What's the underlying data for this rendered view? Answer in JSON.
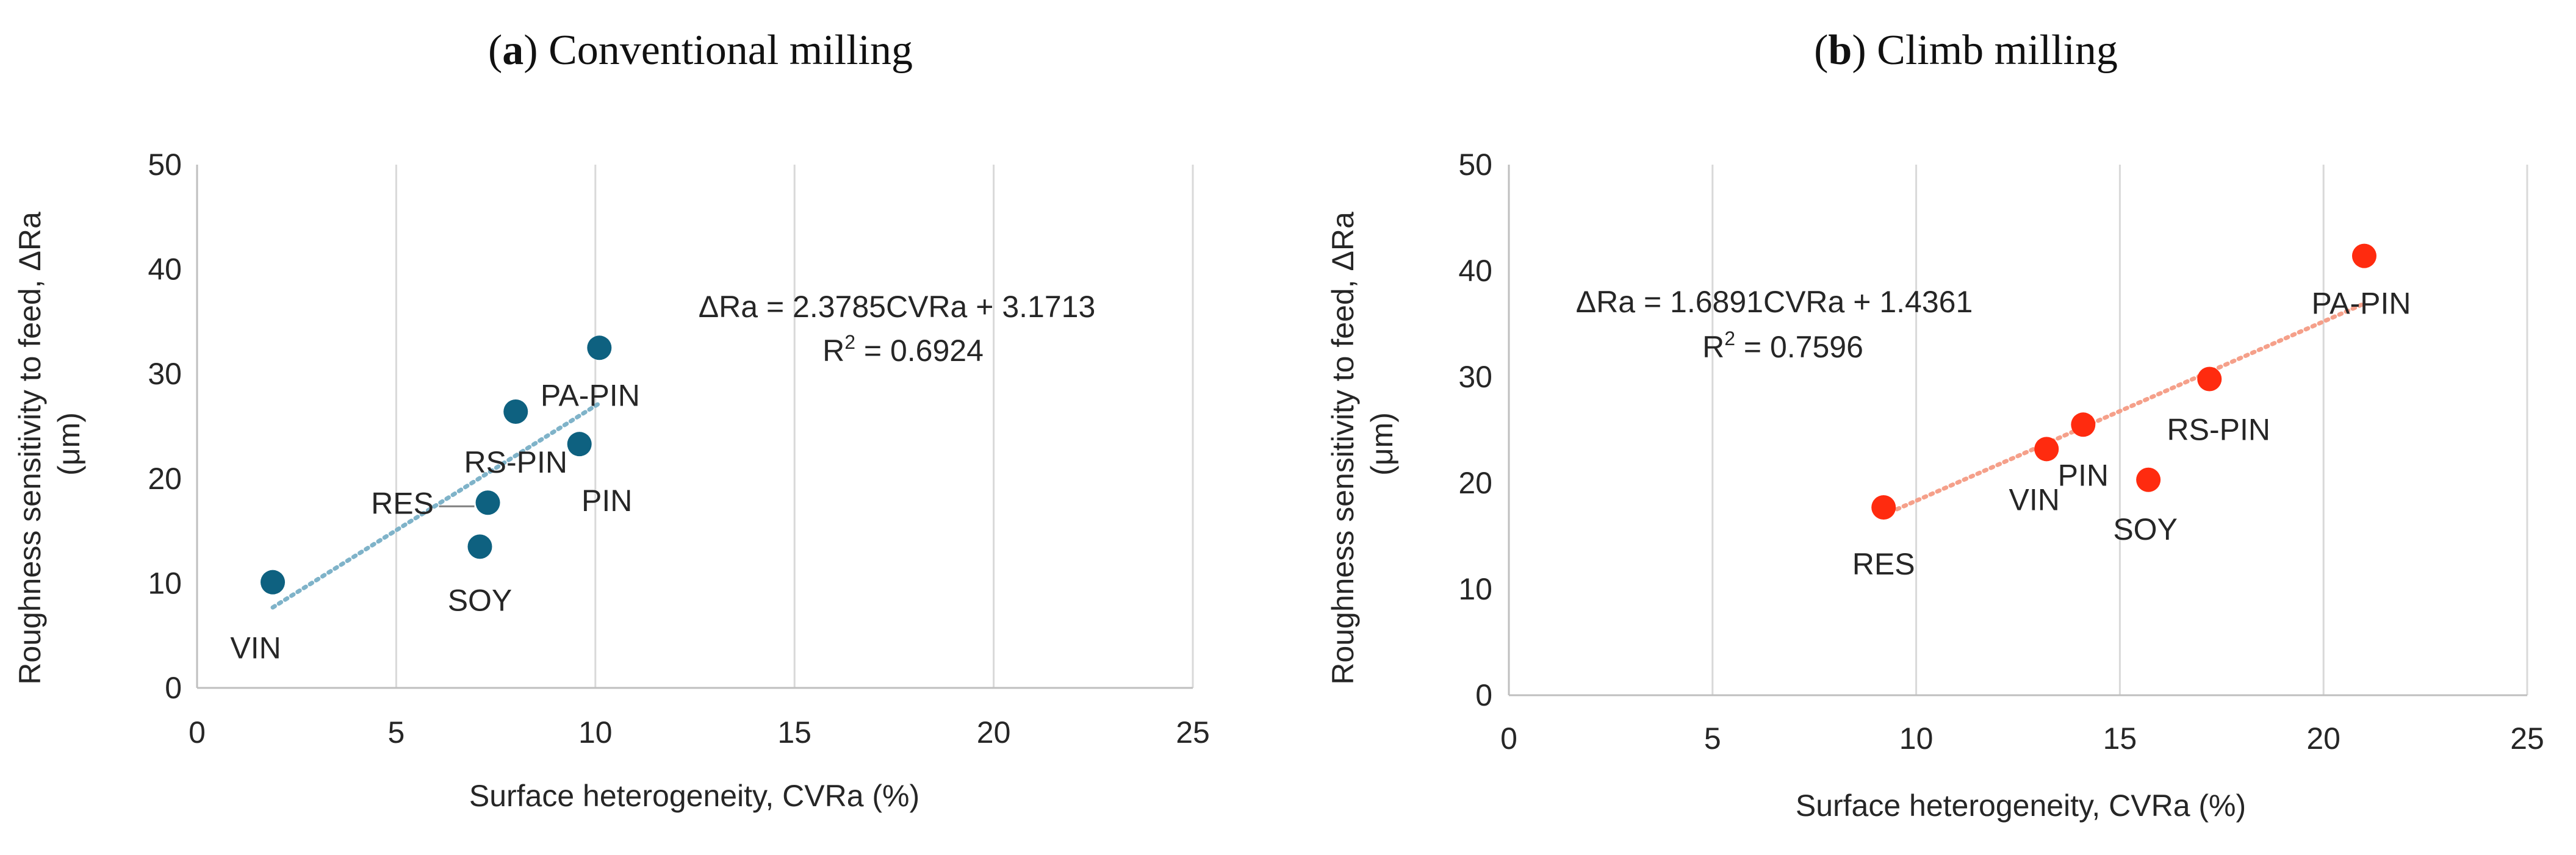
{
  "chart_data": [
    {
      "type": "scatter",
      "title_prefix": "a",
      "title": "Conventional milling",
      "xlabel": "Surface heterogeneity, CVRa (%)",
      "ylabel_line1": "Roughness sensitivity to feed, ΔRa",
      "ylabel_line2": "(μm)",
      "xlim": [
        0,
        25
      ],
      "ylim": [
        0,
        50
      ],
      "xticks": [
        0,
        5,
        10,
        15,
        20,
        25
      ],
      "yticks": [
        0,
        10,
        20,
        30,
        40,
        50
      ],
      "grid": "vertical",
      "marker_color": "#0e6180",
      "trend_color": "#7fb3c9",
      "points": [
        {
          "label": "VIN",
          "x": 1.9,
          "y": 10.1
        },
        {
          "label": "SOY",
          "x": 7.1,
          "y": 13.5
        },
        {
          "label": "RES",
          "x": 7.3,
          "y": 17.7
        },
        {
          "label": "RS-PIN",
          "x": 8.0,
          "y": 26.4
        },
        {
          "label": "PIN",
          "x": 9.6,
          "y": 23.3
        },
        {
          "label": "PA-PIN",
          "x": 10.1,
          "y": 32.5
        }
      ],
      "trendline": {
        "slope": 2.3785,
        "intercept": 3.1713,
        "x_range": [
          1.9,
          10.1
        ]
      },
      "equation": "ΔRa = 2.3785CVRa + 3.1713",
      "r2_value": " = 0.6924"
    },
    {
      "type": "scatter",
      "title_prefix": "b",
      "title": "Climb milling",
      "xlabel": "Surface heterogeneity, CVRa (%)",
      "ylabel_line1": "Roughness sensitivity to feed, ΔRa",
      "ylabel_line2": "(μm)",
      "xlim": [
        0,
        25
      ],
      "ylim": [
        0,
        50
      ],
      "xticks": [
        0,
        5,
        10,
        15,
        20,
        25
      ],
      "yticks": [
        0,
        10,
        20,
        30,
        40,
        50
      ],
      "grid": "vertical",
      "marker_color": "#ff2b0f",
      "trend_color": "#f5a08a",
      "points": [
        {
          "label": "RES",
          "x": 9.2,
          "y": 17.7
        },
        {
          "label": "VIN",
          "x": 13.2,
          "y": 23.2
        },
        {
          "label": "PIN",
          "x": 14.1,
          "y": 25.5
        },
        {
          "label": "SOY",
          "x": 15.7,
          "y": 20.3
        },
        {
          "label": "RS-PIN",
          "x": 17.2,
          "y": 29.8
        },
        {
          "label": "PA-PIN",
          "x": 21.0,
          "y": 41.4
        }
      ],
      "trendline": {
        "slope": 1.6891,
        "intercept": 1.4361,
        "x_range": [
          9.2,
          21.0
        ]
      },
      "equation": "ΔRa = 1.6891CVRa + 1.4361",
      "r2_value": " = 0.7596"
    }
  ]
}
